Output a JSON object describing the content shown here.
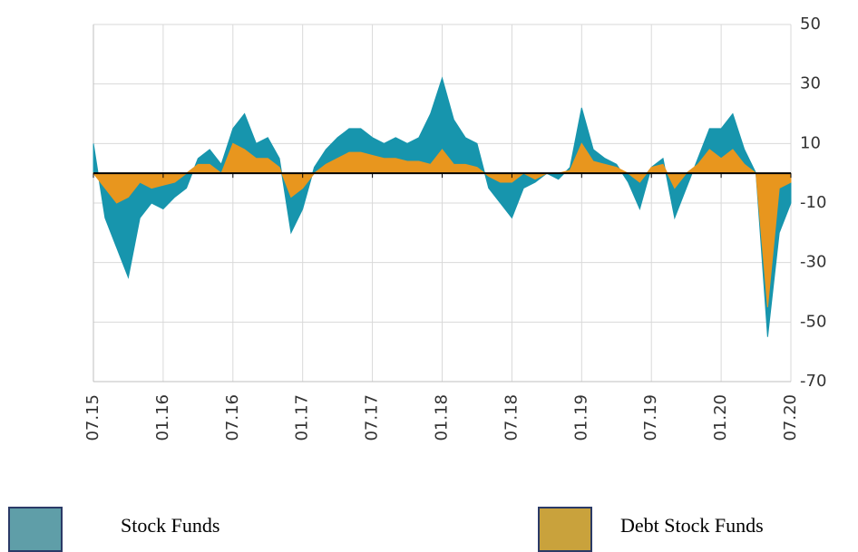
{
  "chart_data": {
    "type": "area",
    "categories": [
      "07.15",
      null,
      null,
      null,
      null,
      null,
      "01.16",
      null,
      null,
      null,
      null,
      null,
      "07.16",
      null,
      null,
      null,
      null,
      null,
      "01.17",
      null,
      null,
      null,
      null,
      null,
      "07.17",
      null,
      null,
      null,
      null,
      null,
      "01.18",
      null,
      null,
      null,
      null,
      null,
      "07.18",
      null,
      null,
      null,
      null,
      null,
      "01.19",
      null,
      null,
      null,
      null,
      null,
      "07.19",
      null,
      null,
      null,
      null,
      null,
      "01.20",
      null,
      null,
      null,
      null,
      null,
      "07.20"
    ],
    "series": [
      {
        "name": "Stock Funds",
        "color": "#1795ad",
        "legend_color": "#5f9ea8",
        "values": [
          10,
          -15,
          -25,
          -35,
          -15,
          -10,
          -12,
          -8,
          -5,
          5,
          8,
          3,
          15,
          20,
          10,
          12,
          5,
          -20,
          -12,
          2,
          8,
          12,
          15,
          15,
          12,
          10,
          12,
          10,
          12,
          20,
          32,
          18,
          12,
          10,
          -5,
          -10,
          -15,
          -5,
          -3,
          0,
          -2,
          2,
          22,
          8,
          5,
          3,
          -3,
          -12,
          2,
          5,
          -15,
          -5,
          5,
          15,
          15,
          20,
          8,
          0,
          -55,
          -20,
          -10
        ]
      },
      {
        "name": "Debt Stock Funds",
        "color": "#e8961e",
        "legend_color": "#c9a23c",
        "values": [
          0,
          -5,
          -10,
          -8,
          -3,
          -5,
          -4,
          -3,
          0,
          3,
          3,
          0,
          10,
          8,
          5,
          5,
          2,
          -8,
          -5,
          0,
          3,
          5,
          7,
          7,
          6,
          5,
          5,
          4,
          4,
          3,
          8,
          3,
          3,
          2,
          -1,
          -3,
          -3,
          0,
          -2,
          0,
          0,
          1,
          10,
          4,
          3,
          2,
          0,
          -3,
          2,
          3,
          -5,
          0,
          3,
          8,
          5,
          8,
          3,
          0,
          -45,
          -5,
          -3
        ]
      }
    ],
    "ylim": [
      -70,
      50
    ],
    "yticks": [
      50,
      30,
      10,
      -10,
      -30,
      -50,
      -70
    ],
    "grid": true
  }
}
